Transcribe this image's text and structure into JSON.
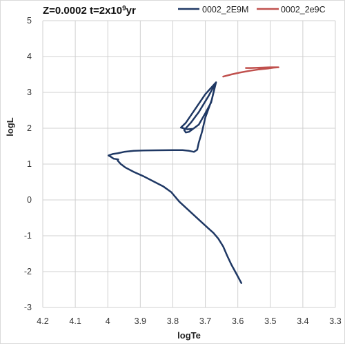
{
  "chart_data": {
    "type": "line",
    "title": {
      "prefix": "Z=0.0002 t=2x10",
      "superscript": "9",
      "suffix": "yr"
    },
    "xlabel": "logTe",
    "ylabel": "logL",
    "xlim": [
      4.2,
      3.3
    ],
    "ylim": [
      -3,
      5
    ],
    "x_reversed": true,
    "xticks": [
      "4.2",
      "4.1",
      "4",
      "3.9",
      "3.8",
      "3.7",
      "3.6",
      "3.5",
      "3.4",
      "3.3"
    ],
    "yticks": [
      "5",
      "4",
      "3",
      "2",
      "1",
      "0",
      "-1",
      "-2",
      "-3"
    ],
    "grid": true,
    "legend_position": "top",
    "series": [
      {
        "name": "0002_2E9M",
        "color": "#1f3864",
        "points": [
          [
            3.589,
            -2.32
          ],
          [
            3.605,
            -2.05
          ],
          [
            3.62,
            -1.8
          ],
          [
            3.633,
            -1.55
          ],
          [
            3.645,
            -1.3
          ],
          [
            3.66,
            -1.08
          ],
          [
            3.675,
            -0.92
          ],
          [
            3.69,
            -0.8
          ],
          [
            3.72,
            -0.55
          ],
          [
            3.75,
            -0.3
          ],
          [
            3.78,
            -0.05
          ],
          [
            3.805,
            0.22
          ],
          [
            3.83,
            0.38
          ],
          [
            3.86,
            0.52
          ],
          [
            3.89,
            0.66
          ],
          [
            3.92,
            0.78
          ],
          [
            3.945,
            0.9
          ],
          [
            3.96,
            1.0
          ],
          [
            3.97,
            1.1
          ],
          [
            3.968,
            1.13
          ],
          [
            3.982,
            1.15
          ],
          [
            3.99,
            1.2
          ],
          [
            3.998,
            1.24
          ],
          [
            3.985,
            1.28
          ],
          [
            3.97,
            1.3
          ],
          [
            3.95,
            1.34
          ],
          [
            3.92,
            1.37
          ],
          [
            3.89,
            1.38
          ],
          [
            3.85,
            1.385
          ],
          [
            3.8,
            1.39
          ],
          [
            3.77,
            1.39
          ],
          [
            3.75,
            1.37
          ],
          [
            3.735,
            1.34
          ],
          [
            3.725,
            1.4
          ],
          [
            3.72,
            1.6
          ],
          [
            3.71,
            1.9
          ],
          [
            3.7,
            2.3
          ],
          [
            3.68,
            2.8
          ],
          [
            3.668,
            3.27
          ],
          [
            3.69,
            2.9
          ],
          [
            3.72,
            2.45
          ],
          [
            3.745,
            2.15
          ],
          [
            3.765,
            1.95
          ],
          [
            3.76,
            1.88
          ],
          [
            3.75,
            1.9
          ],
          [
            3.72,
            2.1
          ],
          [
            3.7,
            2.42
          ],
          [
            3.682,
            2.72
          ],
          [
            3.667,
            3.28
          ],
          [
            3.7,
            2.95
          ],
          [
            3.73,
            2.55
          ],
          [
            3.76,
            2.15
          ],
          [
            3.775,
            2.02
          ],
          [
            3.755,
            1.97
          ],
          [
            3.74,
            1.98
          ]
        ]
      },
      {
        "name": "0002_2e9C",
        "color": "#c0504d",
        "points": [
          [
            3.645,
            3.44
          ],
          [
            3.62,
            3.5
          ],
          [
            3.595,
            3.55
          ],
          [
            3.565,
            3.6
          ],
          [
            3.535,
            3.64
          ],
          [
            3.505,
            3.67
          ],
          [
            3.49,
            3.69
          ],
          [
            3.475,
            3.7
          ],
          [
            3.5,
            3.7
          ],
          [
            3.53,
            3.69
          ],
          [
            3.56,
            3.68
          ],
          [
            3.575,
            3.68
          ]
        ]
      }
    ]
  }
}
